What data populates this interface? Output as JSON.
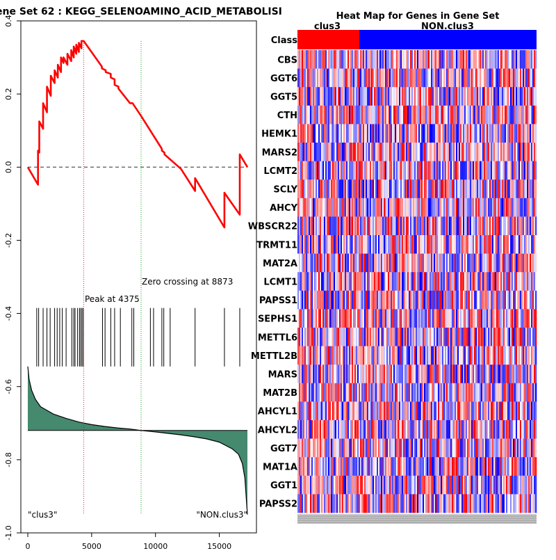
{
  "gsea": {
    "title": "ene Set  62 : KEGG_SELENOAMINO_ACID_METABOLISI",
    "peak_label": "Peak at 4375",
    "zero_label": "Zero crossing at 8873",
    "left_label": "\"clus3\"",
    "right_label": "\"NON.clus3\""
  },
  "heatmap": {
    "title": "Heat Map for Genes in Gene Set",
    "class_label": "Class",
    "class_names": [
      "clus3",
      "NON.clus3"
    ],
    "class_colors": [
      "#ff0000",
      "#0000ff"
    ],
    "genes": [
      "CBS",
      "GGT6",
      "GGT5",
      "CTH",
      "HEMK1",
      "MARS2",
      "LCMT2",
      "SCLY",
      "AHCY",
      "WBSCR22",
      "TRMT11",
      "MAT2A",
      "LCMT1",
      "PAPSS1",
      "SEPHS1",
      "METTL6",
      "METTL2B",
      "MARS",
      "MAT2B",
      "AHCYL1",
      "AHCYL2",
      "GGT7",
      "MAT1A",
      "GGT1",
      "PAPSS2"
    ]
  },
  "chart_data": [
    {
      "type": "line",
      "title": "ene Set  62 : KEGG_SELENOAMINO_ACID_METABOLISI",
      "xlabel": "",
      "ylabel": "",
      "xlim": [
        0,
        17200
      ],
      "ylim": [
        -1.0,
        0.4
      ],
      "x_ticks": [
        0,
        5000,
        10000,
        15000
      ],
      "x_tick_labels": [
        "0",
        "5000",
        "10000",
        "15000"
      ],
      "y_ticks": [
        0.4,
        0.2,
        0.0,
        -0.2,
        -0.4,
        -0.6,
        -0.8,
        -1.0
      ],
      "y_tick_labels": [
        "0.4",
        "0.2",
        "0.0",
        "-0.2",
        "-0.4",
        "-0.6",
        "-0.8",
        "-1.0"
      ],
      "series": [
        {
          "color": "#ff0000",
          "x": [
            0,
            800,
            800,
            900,
            900,
            1200,
            1200,
            1500,
            1500,
            1800,
            1800,
            2100,
            2100,
            2350,
            2350,
            2600,
            2600,
            2800,
            2800,
            3100,
            3100,
            3400,
            3400,
            3600,
            3600,
            3800,
            3800,
            4000,
            4000,
            4200,
            4200,
            4375,
            5800,
            5800,
            6100,
            6100,
            6500,
            6500,
            6800,
            6800,
            7100,
            7100,
            8000,
            8200,
            8873,
            10500,
            10500,
            10700,
            10700,
            12000,
            13100,
            13100,
            15400,
            15400,
            16600,
            16600,
            17200
          ],
          "y": [
            0.0,
            -0.048,
            0.045,
            0.04,
            0.125,
            0.105,
            0.175,
            0.15,
            0.22,
            0.195,
            0.25,
            0.23,
            0.265,
            0.245,
            0.28,
            0.26,
            0.3,
            0.285,
            0.3,
            0.28,
            0.31,
            0.29,
            0.32,
            0.3,
            0.33,
            0.31,
            0.335,
            0.315,
            0.34,
            0.325,
            0.345,
            0.345,
            0.275,
            0.27,
            0.265,
            0.26,
            0.255,
            0.245,
            0.24,
            0.225,
            0.22,
            0.215,
            0.175,
            0.175,
            0.14,
            0.05,
            0.045,
            0.04,
            0.035,
            -0.005,
            -0.065,
            -0.03,
            -0.165,
            -0.07,
            -0.13,
            0.035,
            0.0
          ]
        }
      ],
      "hits": [
        700,
        850,
        1200,
        1500,
        1750,
        2100,
        2300,
        2500,
        2700,
        3000,
        3450,
        3600,
        3700,
        3900,
        4050,
        4150,
        4250,
        4350,
        5850,
        6050,
        6500,
        6800,
        7250,
        8150,
        8300,
        9600,
        9850,
        10500,
        10650,
        11150,
        13100,
        15400,
        16600
      ],
      "peak_x": 4375,
      "zero_crossing_x": 8873,
      "ranked_metric": {
        "x": [
          0,
          100,
          300,
          600,
          1000,
          1500,
          2000,
          3000,
          4000,
          5000,
          6000,
          7000,
          8000,
          8873,
          10000,
          11000,
          12000,
          13000,
          14000,
          15000,
          16000,
          16500,
          16800,
          17000,
          17100,
          17200
        ],
        "y": [
          -0.545,
          -0.58,
          -0.61,
          -0.635,
          -0.655,
          -0.665,
          -0.675,
          -0.687,
          -0.697,
          -0.704,
          -0.709,
          -0.713,
          -0.716,
          -0.72,
          -0.724,
          -0.728,
          -0.732,
          -0.737,
          -0.743,
          -0.752,
          -0.77,
          -0.785,
          -0.81,
          -0.85,
          -0.9,
          -0.95
        ],
        "baseline": -0.72,
        "color": "#45896f"
      }
    },
    {
      "type": "heatmap",
      "title": "Heat Map for Genes in Gene Set",
      "rows": [
        "CBS",
        "GGT6",
        "GGT5",
        "CTH",
        "HEMK1",
        "MARS2",
        "LCMT2",
        "SCLY",
        "AHCY",
        "WBSCR22",
        "TRMT11",
        "MAT2A",
        "LCMT1",
        "PAPSS1",
        "SEPHS1",
        "METTL6",
        "METTL2B",
        "MARS",
        "MAT2B",
        "AHCYL1",
        "AHCYL2",
        "GGT7",
        "MAT1A",
        "GGT1",
        "PAPSS2"
      ],
      "column_classes": [
        "clus3",
        "NON.clus3"
      ],
      "class_fraction": [
        0.25,
        0.75
      ],
      "color_scale": [
        "#0000ff",
        "#ffffff",
        "#ff0000"
      ]
    }
  ]
}
